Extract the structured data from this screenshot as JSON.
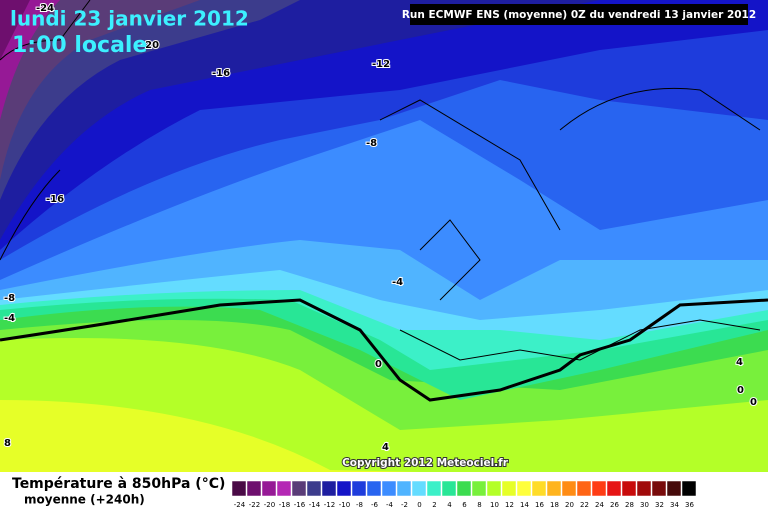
{
  "header": {
    "date": "lundi 23 janvier 2012",
    "time": "1:00 locale",
    "run": "Run ECMWF ENS (moyenne) 0Z du vendredi 13 janvier 2012"
  },
  "map": {
    "contour_labels": [
      -24,
      -20,
      -16,
      -12,
      -8,
      -16,
      -8,
      -4,
      -4,
      0,
      4,
      0,
      0,
      8,
      4
    ],
    "copyright": "Copyright 2012 Meteociel.fr"
  },
  "footer": {
    "title": "Température à 850hPa (°C)",
    "subtitle": "moyenne  (+240h)",
    "scale": {
      "labels": [
        -24,
        -22,
        -20,
        -18,
        -16,
        -14,
        -12,
        -10,
        -8,
        -6,
        -4,
        -2,
        0,
        2,
        4,
        6,
        8,
        10,
        12,
        14,
        16,
        18,
        20,
        22,
        24,
        26,
        28,
        30,
        32,
        34,
        36
      ],
      "colors": [
        "#4a0a46",
        "#6e0f6e",
        "#961996",
        "#b428b4",
        "#5a3c78",
        "#3c3c8c",
        "#1e1ea0",
        "#1414c8",
        "#1e3cdc",
        "#2864f0",
        "#3c8cff",
        "#50b4ff",
        "#64dcff",
        "#3cf0c8",
        "#28e696",
        "#3cdc50",
        "#78f03c",
        "#b4ff28",
        "#e6ff28",
        "#ffff3c",
        "#ffdc28",
        "#ffb41e",
        "#ff8c14",
        "#ff6414",
        "#ff3c14",
        "#e61414",
        "#c80a0a",
        "#a00a0a",
        "#780a0a",
        "#460a0a",
        "#000000"
      ]
    }
  }
}
